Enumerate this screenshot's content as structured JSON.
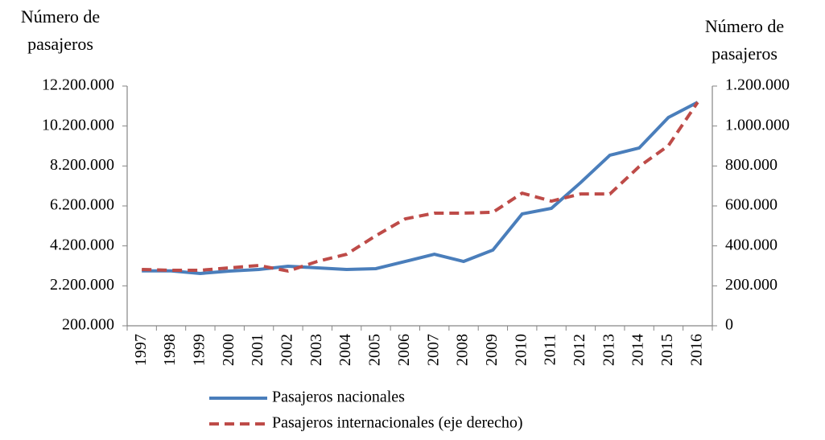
{
  "chart_data": {
    "type": "line",
    "y_title": "Número de pasajeros",
    "y2_title": "Número de pasajeros",
    "categories": [
      "1997",
      "1998",
      "1999",
      "2000",
      "2001",
      "2002",
      "2003",
      "2004",
      "2005",
      "2006",
      "2007",
      "2008",
      "2009",
      "2010",
      "2011",
      "2012",
      "2013",
      "2014",
      "2015",
      "2016"
    ],
    "series": [
      {
        "name": "Pasajeros nacionales",
        "color": "#4a7ebb",
        "dash": false,
        "values": [
          2950000,
          2950000,
          2820000,
          2940000,
          3020000,
          3180000,
          3100000,
          3020000,
          3060000,
          3420000,
          3780000,
          3420000,
          3990000,
          5800000,
          6080000,
          7370000,
          8740000,
          9100000,
          10630000,
          11390000
        ]
      },
      {
        "name": "Pasajeros internacionales (eje derecho)",
        "color": "#be4b48",
        "dash": true,
        "axis": "y2",
        "values": [
          282000,
          278000,
          278000,
          290000,
          302000,
          274000,
          322000,
          358000,
          451000,
          535000,
          564000,
          564000,
          568000,
          664000,
          624000,
          660000,
          660000,
          797000,
          902000,
          1119000
        ]
      }
    ],
    "ylim": [
      200000,
      12200000
    ],
    "yticks": [
      {
        "value": 200000,
        "label": "200.000"
      },
      {
        "value": 2200000,
        "label": "2.200.000"
      },
      {
        "value": 4200000,
        "label": "4.200.000"
      },
      {
        "value": 6200000,
        "label": "6.200.000"
      },
      {
        "value": 8200000,
        "label": "8.200.000"
      },
      {
        "value": 10200000,
        "label": "10.200.000"
      },
      {
        "value": 12200000,
        "label": "12.200.000"
      }
    ],
    "y2lim": [
      0,
      1200000
    ],
    "y2ticks": [
      0,
      {
        "value": 200000,
        "label": "200.000"
      },
      {
        "value": 400000,
        "label": "400.000"
      },
      {
        "value": 600000,
        "label": "600.000"
      },
      {
        "value": 800000,
        "label": "800.000"
      },
      {
        "value": 1000000,
        "label": "1.000.000"
      },
      {
        "value": 1200000,
        "label": "1.200.000"
      }
    ],
    "grid": false
  }
}
